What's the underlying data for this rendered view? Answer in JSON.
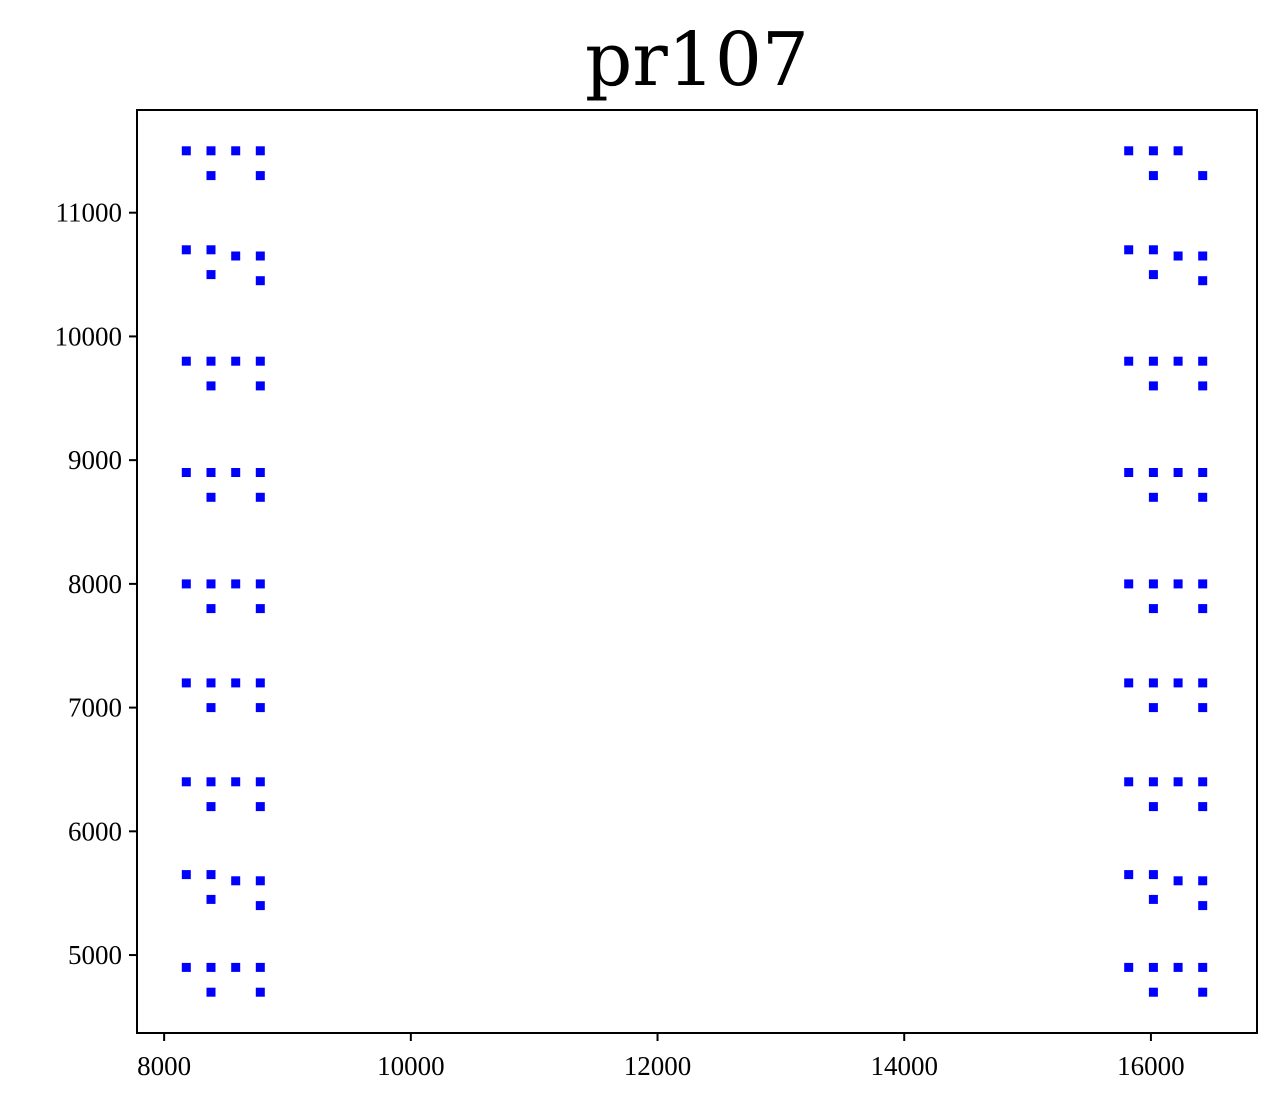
{
  "chart_data": {
    "type": "scatter",
    "title": "pr107",
    "xlabel": "",
    "ylabel": "",
    "xlim": [
      7780,
      16860
    ],
    "ylim": [
      4370,
      11830
    ],
    "xticks": [
      8000,
      10000,
      12000,
      14000,
      16000
    ],
    "yticks": [
      5000,
      6000,
      7000,
      8000,
      9000,
      10000,
      11000
    ],
    "grid": false,
    "legend": false,
    "marker": "square",
    "color": "#0000ff",
    "series": [
      {
        "points": [
          [
            8180,
            11500
          ],
          [
            8380,
            11500
          ],
          [
            8580,
            11500
          ],
          [
            8780,
            11500
          ],
          [
            8380,
            11300
          ],
          [
            8780,
            11300
          ],
          [
            8180,
            10700
          ],
          [
            8380,
            10700
          ],
          [
            8580,
            10650
          ],
          [
            8780,
            10650
          ],
          [
            8380,
            10500
          ],
          [
            8780,
            10450
          ],
          [
            8180,
            9800
          ],
          [
            8380,
            9800
          ],
          [
            8580,
            9800
          ],
          [
            8780,
            9800
          ],
          [
            8380,
            9600
          ],
          [
            8780,
            9600
          ],
          [
            8180,
            8900
          ],
          [
            8380,
            8900
          ],
          [
            8580,
            8900
          ],
          [
            8780,
            8900
          ],
          [
            8380,
            8700
          ],
          [
            8780,
            8700
          ],
          [
            8180,
            8000
          ],
          [
            8380,
            8000
          ],
          [
            8580,
            8000
          ],
          [
            8780,
            8000
          ],
          [
            8380,
            7800
          ],
          [
            8780,
            7800
          ],
          [
            8180,
            7200
          ],
          [
            8380,
            7200
          ],
          [
            8580,
            7200
          ],
          [
            8780,
            7200
          ],
          [
            8380,
            7000
          ],
          [
            8780,
            7000
          ],
          [
            8180,
            6400
          ],
          [
            8380,
            6400
          ],
          [
            8580,
            6400
          ],
          [
            8780,
            6400
          ],
          [
            8380,
            6200
          ],
          [
            8780,
            6200
          ],
          [
            8180,
            5650
          ],
          [
            8380,
            5650
          ],
          [
            8580,
            5600
          ],
          [
            8780,
            5600
          ],
          [
            8380,
            5450
          ],
          [
            8780,
            5400
          ],
          [
            8180,
            4900
          ],
          [
            8380,
            4900
          ],
          [
            8580,
            4900
          ],
          [
            8780,
            4900
          ],
          [
            8380,
            4700
          ],
          [
            8780,
            4700
          ],
          [
            15820,
            11500
          ],
          [
            16020,
            11500
          ],
          [
            16220,
            11500
          ],
          [
            16020,
            11300
          ],
          [
            16420,
            11300
          ],
          [
            15820,
            10700
          ],
          [
            16020,
            10700
          ],
          [
            16220,
            10650
          ],
          [
            16420,
            10650
          ],
          [
            16020,
            10500
          ],
          [
            16420,
            10450
          ],
          [
            15820,
            9800
          ],
          [
            16020,
            9800
          ],
          [
            16220,
            9800
          ],
          [
            16420,
            9800
          ],
          [
            16020,
            9600
          ],
          [
            16420,
            9600
          ],
          [
            15820,
            8900
          ],
          [
            16020,
            8900
          ],
          [
            16220,
            8900
          ],
          [
            16420,
            8900
          ],
          [
            16020,
            8700
          ],
          [
            16420,
            8700
          ],
          [
            15820,
            8000
          ],
          [
            16020,
            8000
          ],
          [
            16220,
            8000
          ],
          [
            16420,
            8000
          ],
          [
            16020,
            7800
          ],
          [
            16420,
            7800
          ],
          [
            15820,
            7200
          ],
          [
            16020,
            7200
          ],
          [
            16220,
            7200
          ],
          [
            16420,
            7200
          ],
          [
            16020,
            7000
          ],
          [
            16420,
            7000
          ],
          [
            15820,
            6400
          ],
          [
            16020,
            6400
          ],
          [
            16220,
            6400
          ],
          [
            16420,
            6400
          ],
          [
            16020,
            6200
          ],
          [
            16420,
            6200
          ],
          [
            15820,
            5650
          ],
          [
            16020,
            5650
          ],
          [
            16220,
            5600
          ],
          [
            16420,
            5600
          ],
          [
            16020,
            5450
          ],
          [
            16420,
            5400
          ],
          [
            15820,
            4900
          ],
          [
            16020,
            4900
          ],
          [
            16220,
            4900
          ],
          [
            16420,
            4900
          ],
          [
            16020,
            4700
          ],
          [
            16420,
            4700
          ]
        ]
      }
    ]
  }
}
